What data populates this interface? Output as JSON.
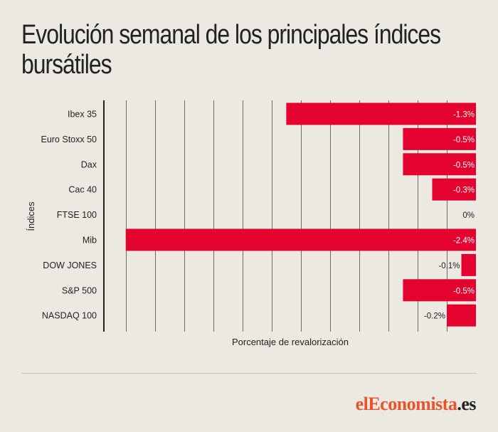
{
  "header": {
    "title": "Evolución semanal de los principales índices bursátiles"
  },
  "colors": {
    "bar": "#e4032e",
    "grid": "#6e6b66",
    "axis": "#222222",
    "background": "#ece9e3",
    "brand_accent": "#e8532a"
  },
  "chart_data": {
    "type": "bar",
    "orientation": "horizontal",
    "categories": [
      "Ibex 35",
      "Euro Stoxx 50",
      "Dax",
      "Cac 40",
      "FTSE 100",
      "Mib",
      "DOW JONES",
      "S&P 500",
      "NASDAQ 100"
    ],
    "values": [
      -1.3,
      -0.5,
      -0.5,
      -0.3,
      0,
      -2.4,
      -0.1,
      -0.5,
      -0.2
    ],
    "value_labels": [
      "-1.3%",
      "-0.5%",
      "-0.5%",
      "-0.3%",
      "0%",
      "-2.4%",
      "-0.1%",
      "-0.5%",
      "-0.2%"
    ],
    "xlabel": "Porcentaje de revalorización",
    "ylabel": "Índices",
    "xlim": [
      -2.55,
      0
    ],
    "grid_step": 0.2,
    "grid": true,
    "legend": "none"
  },
  "footer": {
    "logo_prefix": "el",
    "logo_main": "Economista",
    "logo_suffix": ".es"
  }
}
